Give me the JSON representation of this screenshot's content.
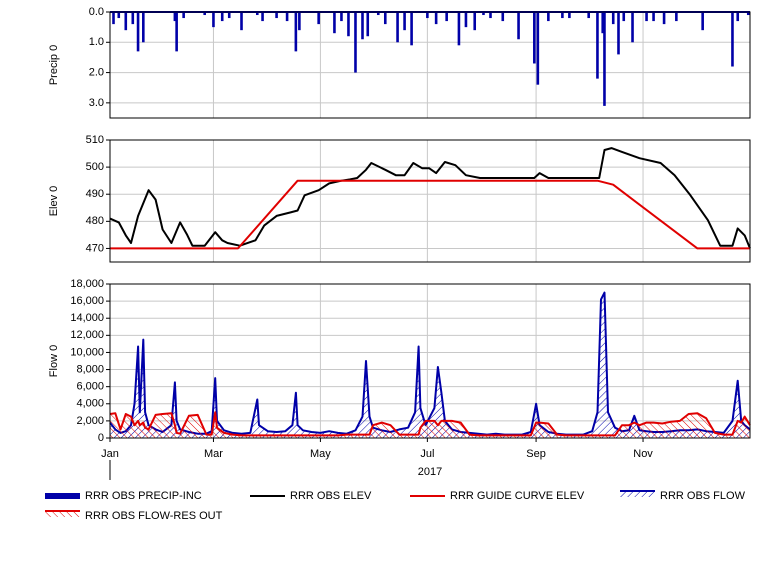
{
  "chart_data": [
    {
      "type": "bar",
      "y_label": "Precip 0",
      "ylim": [
        0,
        3.5
      ],
      "y_inverted": true,
      "yticks": [
        {
          "value": 0,
          "label": "0.0"
        },
        {
          "value": 1,
          "label": "1.0"
        },
        {
          "value": 2,
          "label": "2.0"
        },
        {
          "value": 3,
          "label": "3.0"
        }
      ],
      "xlim": [
        0,
        365
      ],
      "grid": true,
      "series": [
        {
          "name": "RRR OBS PRECIP-INC",
          "color": "#0000a8",
          "x": [
            2,
            5,
            9,
            13,
            16,
            19,
            37,
            38,
            42,
            54,
            59,
            64,
            68,
            75,
            84,
            87,
            95,
            101,
            106,
            108,
            119,
            128,
            132,
            136,
            140,
            144,
            147,
            153,
            157,
            164,
            168,
            172,
            181,
            186,
            192,
            199,
            203,
            208,
            213,
            217,
            224,
            233,
            242,
            244,
            250,
            258,
            262,
            273,
            278,
            281,
            282,
            287,
            290,
            293,
            298,
            306,
            310,
            316,
            323,
            338,
            355,
            358,
            364
          ],
          "values": [
            0.4,
            0.2,
            0.6,
            0.4,
            1.3,
            1.0,
            0.3,
            1.3,
            0.2,
            0.1,
            0.5,
            0.3,
            0.2,
            0.6,
            0.1,
            0.3,
            0.2,
            0.3,
            1.3,
            0.6,
            0.4,
            0.7,
            0.3,
            0.8,
            2.0,
            0.9,
            0.8,
            0.1,
            0.4,
            1.0,
            0.6,
            1.1,
            0.2,
            0.4,
            0.3,
            1.1,
            0.5,
            0.6,
            0.1,
            0.2,
            0.3,
            0.9,
            1.7,
            2.4,
            0.3,
            0.2,
            0.2,
            0.2,
            2.2,
            0.7,
            3.1,
            0.4,
            1.4,
            0.3,
            1.0,
            0.3,
            0.3,
            0.4,
            0.3,
            0.6,
            1.8,
            0.3,
            0.1
          ]
        }
      ]
    },
    {
      "type": "line",
      "y_label": "Elev 0",
      "ylim": [
        465,
        510
      ],
      "yticks": [
        470,
        480,
        490,
        500,
        510
      ],
      "xlim": [
        0,
        365
      ],
      "grid": true,
      "series": [
        {
          "name": "RRR OBS ELEV",
          "color": "#000000",
          "x": [
            0,
            5,
            9,
            12,
            16,
            22,
            26,
            30,
            35,
            40,
            44,
            47,
            54,
            60,
            64,
            67,
            74,
            83,
            88,
            95,
            103,
            107,
            111,
            119,
            125,
            132,
            137,
            141,
            146,
            149,
            157,
            163,
            168,
            173,
            178,
            182,
            186,
            191,
            197,
            203,
            211,
            234,
            242,
            245,
            250,
            279,
            282,
            286,
            292,
            302,
            314,
            322,
            331,
            341,
            348,
            355,
            358,
            362,
            365
          ],
          "values": [
            481,
            479.6,
            474.8,
            472,
            482,
            491.5,
            488,
            477,
            472,
            479.6,
            475,
            471,
            471,
            476,
            473,
            472,
            471,
            473,
            478.5,
            482,
            483.3,
            484,
            489.6,
            491.5,
            494,
            495,
            495.5,
            496,
            499,
            501.5,
            499,
            497,
            497,
            501.5,
            499.6,
            499.6,
            497.8,
            501.9,
            500.7,
            497,
            496,
            496,
            496,
            497.8,
            496,
            496,
            506.3,
            507,
            505.6,
            503.3,
            501.5,
            497,
            489.6,
            480.4,
            471,
            471,
            477.4,
            474.8,
            470
          ]
        },
        {
          "name": "RRR GUIDE CURVE ELEV",
          "color": "#e00000",
          "x": [
            0,
            73,
            107,
            278,
            287,
            335,
            365
          ],
          "values": [
            470,
            470,
            495,
            495,
            493.5,
            470,
            470
          ]
        }
      ]
    },
    {
      "type": "area",
      "y_label": "Flow 0",
      "x_label": "2017",
      "ylim": [
        0,
        18000
      ],
      "yticks": [
        0,
        {
          "value": 2000,
          "label": "2,000"
        },
        {
          "value": 4000,
          "label": "4,000"
        },
        {
          "value": 6000,
          "label": "6,000"
        },
        {
          "value": 8000,
          "label": "8,000"
        },
        {
          "value": 10000,
          "label": "10,000"
        },
        {
          "value": 12000,
          "label": "12,000"
        },
        {
          "value": 14000,
          "label": "14,000"
        },
        {
          "value": 16000,
          "label": "16,000"
        },
        {
          "value": 18000,
          "label": "18,000"
        }
      ],
      "xlim": [
        0,
        365
      ],
      "xticks": [
        {
          "value": 0,
          "label": "Jan"
        },
        {
          "value": 59,
          "label": "Mar"
        },
        {
          "value": 120,
          "label": "May"
        },
        {
          "value": 181,
          "label": "Jul"
        },
        {
          "value": 243,
          "label": "Sep"
        },
        {
          "value": 304,
          "label": "Nov"
        }
      ],
      "grid": true,
      "x": [
        0,
        3,
        6,
        9,
        12,
        14,
        16,
        17,
        19,
        20,
        22,
        26,
        30,
        35,
        37,
        38,
        40,
        45,
        50,
        55,
        58,
        60,
        61,
        65,
        70,
        75,
        80,
        84,
        85,
        90,
        95,
        100,
        104,
        106,
        107,
        110,
        115,
        120,
        125,
        130,
        135,
        140,
        144,
        146,
        148,
        150,
        155,
        160,
        165,
        170,
        174,
        176,
        177,
        180,
        185,
        187,
        189,
        191,
        195,
        200,
        205,
        210,
        215,
        220,
        225,
        230,
        235,
        240,
        243,
        245,
        250,
        255,
        260,
        265,
        270,
        275,
        278,
        280,
        282,
        284,
        288,
        292,
        296,
        299,
        302,
        306,
        310,
        315,
        320,
        325,
        330,
        335,
        340,
        345,
        350,
        355,
        358,
        360,
        362,
        365
      ],
      "series": [
        {
          "name": "RRR OBS FLOW",
          "color": "#0000a8",
          "values": [
            1800,
            1000,
            600,
            800,
            1500,
            4000,
            10700,
            3000,
            11500,
            3000,
            1500,
            1000,
            700,
            1500,
            6500,
            2000,
            1000,
            700,
            500,
            500,
            800,
            7000,
            2000,
            900,
            600,
            500,
            600,
            4500,
            1500,
            800,
            700,
            800,
            1500,
            5300,
            1500,
            900,
            700,
            600,
            800,
            600,
            500,
            900,
            2500,
            9000,
            2500,
            1200,
            900,
            700,
            1000,
            1200,
            3000,
            10700,
            3500,
            1500,
            3500,
            8300,
            5300,
            2000,
            1000,
            700,
            600,
            500,
            400,
            500,
            400,
            400,
            400,
            700,
            4000,
            1500,
            700,
            500,
            400,
            400,
            400,
            800,
            3000,
            16200,
            17000,
            3000,
            1200,
            800,
            900,
            2600,
            900,
            800,
            700,
            700,
            800,
            900,
            900,
            1000,
            800,
            700,
            600,
            2000,
            6700,
            2000,
            1500,
            1000
          ]
        },
        {
          "name": "RRR OBS FLOW-RES OUT",
          "color": "#e00000",
          "values": [
            2800,
            2900,
            1000,
            2800,
            2500,
            1500,
            2000,
            1500,
            1800,
            1200,
            1000,
            2700,
            2800,
            2900,
            1500,
            600,
            500,
            2600,
            2700,
            400,
            400,
            3000,
            1200,
            600,
            400,
            300,
            300,
            300,
            300,
            300,
            300,
            300,
            300,
            300,
            300,
            300,
            300,
            300,
            300,
            300,
            400,
            400,
            400,
            400,
            400,
            1500,
            1800,
            1500,
            400,
            400,
            400,
            400,
            1200,
            2000,
            2000,
            1500,
            2000,
            2000,
            2000,
            1800,
            400,
            300,
            300,
            300,
            300,
            300,
            300,
            300,
            1800,
            1800,
            1700,
            400,
            300,
            300,
            300,
            300,
            300,
            300,
            300,
            300,
            300,
            1500,
            1500,
            1800,
            1500,
            1800,
            1800,
            1700,
            1900,
            2000,
            2800,
            2900,
            2300,
            600,
            400,
            400,
            2000,
            1800,
            2500,
            1500
          ]
        }
      ]
    }
  ]
}
